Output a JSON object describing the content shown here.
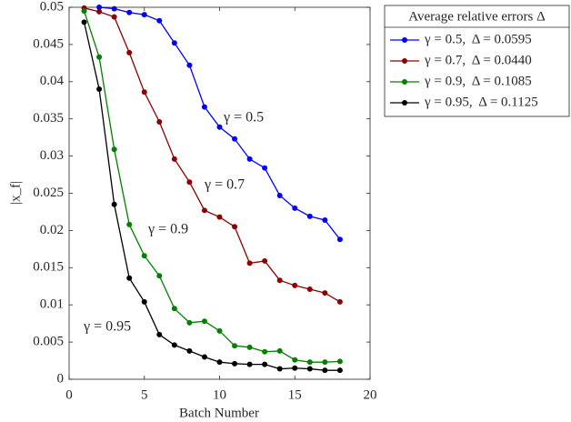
{
  "chart_data": {
    "type": "line",
    "xlabel": "Batch Number",
    "ylabel": "|x_f|",
    "xlim": [
      0,
      20
    ],
    "xticks": [
      0,
      5,
      10,
      15,
      20
    ],
    "ylim": [
      0,
      0.05
    ],
    "yticks": [
      0,
      0.005,
      0.01,
      0.015,
      0.02,
      0.025,
      0.03,
      0.035,
      0.04,
      0.045,
      0.05
    ],
    "grid": false,
    "legend_position": "outside-upper-right",
    "legend_title": "Average relative errors Δ",
    "x": [
      1,
      2,
      3,
      4,
      5,
      6,
      7,
      8,
      9,
      10,
      11,
      12,
      13,
      14,
      15,
      16,
      17,
      18
    ],
    "series": [
      {
        "name": "γ = 0.5,  Δ = 0.0595",
        "color": "#0000ff",
        "values": [
          null,
          0.05,
          0.0498,
          0.0493,
          0.049,
          0.0482,
          0.0452,
          0.0422,
          0.0366,
          0.0339,
          0.0323,
          0.0296,
          0.0284,
          0.0247,
          0.023,
          0.0219,
          0.0214,
          0.0188
        ]
      },
      {
        "name": "γ = 0.7,  Δ = 0.0440",
        "color": "#8b0000",
        "values": [
          0.0499,
          0.0494,
          0.0487,
          0.0439,
          0.0386,
          0.0346,
          0.0296,
          0.0265,
          0.0227,
          0.0218,
          0.0205,
          0.0156,
          0.0159,
          0.0133,
          0.0126,
          0.0121,
          0.0116,
          0.0104
        ]
      },
      {
        "name": "γ = 0.9,  Δ = 0.1085",
        "color": "#008000",
        "values": [
          0.0495,
          0.0433,
          0.0309,
          0.0208,
          0.0166,
          0.0139,
          0.0095,
          0.0076,
          0.0078,
          0.0065,
          0.0045,
          0.0043,
          0.0037,
          0.0038,
          0.0026,
          0.0023,
          0.0023,
          0.0024
        ]
      },
      {
        "name": "γ = 0.95,  Δ = 0.1125",
        "color": "#000000",
        "values": [
          0.048,
          0.039,
          0.0235,
          0.0136,
          0.0104,
          0.006,
          0.0046,
          0.0038,
          0.003,
          0.0023,
          0.0021,
          0.002,
          0.002,
          0.0014,
          0.0015,
          0.0014,
          0.0012,
          0.0012
        ]
      }
    ],
    "annotations": [
      {
        "text": "γ = 0.5",
        "color": "#0000ff"
      },
      {
        "text": "γ = 0.7",
        "color": "#8b0000"
      },
      {
        "text": "γ = 0.9",
        "color": "#008000"
      },
      {
        "text": "γ = 0.95",
        "color": "#000000"
      }
    ]
  }
}
